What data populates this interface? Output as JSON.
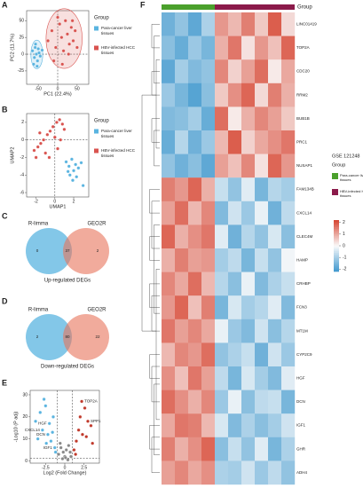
{
  "chart_data": [
    {
      "type": "scatter",
      "label": "A",
      "xlabel": "PC1 (22.4%)",
      "ylabel": "PC2 (11.7%)",
      "legend_title": "Group",
      "xlim": [
        -80,
        80
      ],
      "xticks": [
        -50,
        0,
        50
      ],
      "ylim": [
        -45,
        65
      ],
      "yticks": [
        -25,
        0,
        25,
        50
      ],
      "reflines_x": [
        0
      ],
      "reflines_y": [
        0
      ],
      "ellipses": true,
      "series": [
        {
          "name": "Para-cancer liver tissues",
          "color": "#5ab4e0",
          "x": [
            -65,
            -60,
            -58,
            -55,
            -52,
            -50,
            -48,
            -62,
            -45,
            -57,
            -53,
            -40
          ],
          "y": [
            5,
            -5,
            10,
            0,
            -10,
            8,
            2,
            -15,
            -3,
            15,
            -18,
            6
          ]
        },
        {
          "name": "HBV-infected HCC tissues",
          "color": "#d9534f",
          "x": [
            -25,
            -15,
            -5,
            5,
            10,
            15,
            20,
            25,
            30,
            35,
            40,
            45,
            50,
            -10,
            0,
            12,
            28,
            38
          ],
          "y": [
            20,
            35,
            10,
            45,
            25,
            5,
            50,
            30,
            15,
            40,
            20,
            35,
            10,
            -10,
            55,
            -15,
            0,
            50
          ]
        }
      ]
    },
    {
      "type": "scatter",
      "label": "B",
      "xlabel": "UMAP1",
      "ylabel": "UMAP2",
      "legend_title": "Group",
      "xlim": [
        -3,
        3.6
      ],
      "xticks": [
        -2,
        0,
        2
      ],
      "ylim": [
        -6.5,
        3
      ],
      "yticks": [
        -6,
        -4,
        -2,
        0,
        2
      ],
      "reflines_x": [
        0
      ],
      "reflines_y": [
        0
      ],
      "ellipses": false,
      "series": [
        {
          "name": "Para-cancer liver tissues",
          "color": "#5ab4e0",
          "x": [
            1.2,
            1.5,
            1.8,
            2.0,
            2.2,
            2.5,
            1.6,
            2.8,
            1.9,
            2.3,
            1.4,
            3.0
          ],
          "y": [
            -2.5,
            -3.0,
            -2.2,
            -3.5,
            -2.8,
            -3.2,
            -4.0,
            -2.6,
            -4.6,
            -4.2,
            -3.6,
            -5.2
          ]
        },
        {
          "name": "HBV-infected HCC tissues",
          "color": "#d9534f",
          "x": [
            -2.2,
            -1.8,
            -1.5,
            -1.2,
            -0.8,
            -0.5,
            -0.2,
            0.2,
            0.5,
            0.8,
            -1.0,
            -0.6,
            0.0,
            0.3,
            -1.6,
            -2.0,
            1.0,
            0.6
          ],
          "y": [
            -1.2,
            -0.8,
            -0.4,
            0.0,
            0.6,
            1.0,
            1.5,
            2.0,
            2.3,
            1.8,
            -1.5,
            -2.0,
            0.3,
            -1.0,
            0.8,
            -2.0,
            1.2,
            0.0
          ]
        }
      ]
    },
    {
      "type": "venn",
      "label": "C",
      "sets": [
        "R-limma",
        "GEO2R"
      ],
      "values": [
        0,
        37,
        2
      ],
      "caption": "Up-regulated DEGs",
      "colors": [
        "#5ab4e0",
        "#e8735a"
      ]
    },
    {
      "type": "venn",
      "label": "D",
      "sets": [
        "R-limma",
        "GEO2R"
      ],
      "values": [
        2,
        80,
        22
      ],
      "caption": "Down-regulated DEGs",
      "colors": [
        "#5ab4e0",
        "#e8735a"
      ]
    },
    {
      "type": "scatter",
      "label": "E",
      "xlabel": "Log2 (Fold Change)",
      "ylabel": "-Log10 (P adj)",
      "xlim": [
        -4.5,
        4.5
      ],
      "xticks": [
        -2.5,
        0,
        2.5
      ],
      "ylim": [
        -1,
        32
      ],
      "yticks": [
        0,
        10,
        20,
        30
      ],
      "reflines_x": [
        -1,
        1
      ],
      "reflines_y": [
        1.3
      ],
      "ellipses": false,
      "series": [
        {
          "color": "#5ab4e0",
          "x": [
            -3.8,
            -3.2,
            -2.9,
            -2.5,
            -2.2,
            -2.0,
            -1.8,
            -1.5,
            -1.3,
            -3.5,
            -2.7,
            -1.6,
            -1.2,
            -2.4
          ],
          "y": [
            18,
            22,
            14,
            25,
            12,
            17,
            9,
            20,
            6,
            10,
            28,
            13,
            4,
            8
          ]
        },
        {
          "color": "#888888",
          "x": [
            -0.8,
            -0.5,
            -0.3,
            0.0,
            0.2,
            0.4,
            0.7,
            -0.6,
            0.5,
            0.1,
            -0.2,
            0.8
          ],
          "y": [
            3,
            6,
            1,
            2,
            5,
            0.5,
            4,
            8,
            7,
            1.5,
            4,
            2
          ]
        },
        {
          "color": "#c0392b",
          "x": [
            1.2,
            1.5,
            1.8,
            2.0,
            2.3,
            2.6,
            3.0,
            3.4,
            1.4,
            2.2,
            2.8,
            3.6
          ],
          "y": [
            5,
            9,
            14,
            20,
            12,
            24,
            18,
            16,
            3,
            27,
            11,
            8
          ]
        }
      ],
      "annotations": [
        {
          "text": "TOP2A",
          "x": 2.2,
          "y": 27
        },
        {
          "text": "SPP1",
          "x": 3.0,
          "y": 18
        },
        {
          "text": "HGF",
          "x": -2.0,
          "y": 17
        },
        {
          "text": "CXCL14",
          "x": -2.9,
          "y": 14
        },
        {
          "text": "DCN",
          "x": -2.2,
          "y": 12
        },
        {
          "text": "IGF1",
          "x": -1.3,
          "y": 6
        }
      ]
    },
    {
      "type": "heatmap",
      "label": "F",
      "legend_title": "Group",
      "dataset": "GSE 121248",
      "column_groups": [
        {
          "name": "Para-cancer liver tissues",
          "color": "#4aa02c",
          "count": 4
        },
        {
          "name": "HBV-infected HCC tissues",
          "color": "#8b1a4a",
          "count": 6
        }
      ],
      "rows": [
        "LINC01419",
        "TOP2A",
        "CDC20",
        "RRM2",
        "BUB1B",
        "PRC1",
        "NUSAP1",
        "FAM134B",
        "CXCL14",
        "CLEC4M",
        "HAMP",
        "CRHBP",
        "FCN3",
        "MT1M",
        "CYP2C9",
        "HGF",
        "DCN",
        "IGF1",
        "GHR",
        "ADH4"
      ],
      "clim": [
        -2.2,
        2.2
      ],
      "cticks": [
        -2,
        -1,
        0,
        1,
        2
      ],
      "values": [
        [
          -1.6,
          -1.2,
          -1.8,
          -0.9,
          1.2,
          0.8,
          1.5,
          0.6,
          1.9,
          0.4
        ],
        [
          -1.3,
          -1.7,
          -1.1,
          -1.5,
          0.9,
          1.6,
          0.3,
          1.2,
          0.7,
          1.8
        ],
        [
          -1.8,
          -1.0,
          -1.4,
          -1.2,
          1.4,
          0.5,
          1.1,
          1.7,
          0.2,
          1.0
        ],
        [
          -1.1,
          -1.5,
          -1.9,
          -1.3,
          0.6,
          1.3,
          1.8,
          0.4,
          1.5,
          0.9
        ],
        [
          -1.4,
          -1.3,
          -1.0,
          -1.7,
          1.7,
          0.2,
          0.9,
          1.4,
          1.1,
          0.6
        ],
        [
          -1.7,
          -0.8,
          -1.6,
          -1.1,
          0.8,
          1.9,
          0.5,
          1.0,
          1.3,
          1.6
        ],
        [
          -1.2,
          -1.6,
          -1.3,
          -1.8,
          1.1,
          0.7,
          1.4,
          0.3,
          1.8,
          1.2
        ],
        [
          1.5,
          1.2,
          1.8,
          0.9,
          -0.6,
          -1.2,
          -0.3,
          -1.5,
          -0.8,
          -1.0
        ],
        [
          1.1,
          1.7,
          0.8,
          1.4,
          -1.4,
          -0.5,
          -1.1,
          -0.2,
          -1.6,
          -0.7
        ],
        [
          1.8,
          0.9,
          1.3,
          1.6,
          -0.3,
          -1.6,
          -0.8,
          -1.2,
          -0.4,
          -1.3
        ],
        [
          0.9,
          1.5,
          1.1,
          1.2,
          -1.0,
          -0.7,
          -1.5,
          -0.6,
          -1.2,
          -0.1
        ],
        [
          1.4,
          1.0,
          1.7,
          0.8,
          -0.8,
          -1.3,
          -0.2,
          -1.4,
          -0.9,
          -0.6
        ],
        [
          1.2,
          1.8,
          0.7,
          1.5,
          -1.5,
          -0.4,
          -1.0,
          -0.8,
          -0.3,
          -1.4
        ],
        [
          1.6,
          1.1,
          1.4,
          1.0,
          -0.2,
          -1.1,
          -1.4,
          -0.5,
          -1.3,
          -0.8
        ],
        [
          0.8,
          1.4,
          1.2,
          1.7,
          -1.2,
          -0.9,
          -0.6,
          -1.6,
          -0.5,
          -1.1
        ],
        [
          1.3,
          0.7,
          1.6,
          1.1,
          -0.7,
          -1.5,
          -0.4,
          -1.0,
          -1.4,
          -0.3
        ],
        [
          1.7,
          1.3,
          0.9,
          1.4,
          -1.1,
          -0.2,
          -1.3,
          -0.7,
          -0.6,
          -1.5
        ],
        [
          1.0,
          1.6,
          1.5,
          0.8,
          -0.4,
          -1.4,
          -0.9,
          -1.3,
          -1.0,
          -0.5
        ],
        [
          1.5,
          0.9,
          1.3,
          1.8,
          -1.3,
          -0.6,
          -1.2,
          -0.3,
          -1.5,
          -0.9
        ],
        [
          1.1,
          1.4,
          1.0,
          1.3,
          -0.9,
          -1.0,
          -0.5,
          -1.1,
          -0.7,
          -1.2
        ]
      ]
    }
  ]
}
